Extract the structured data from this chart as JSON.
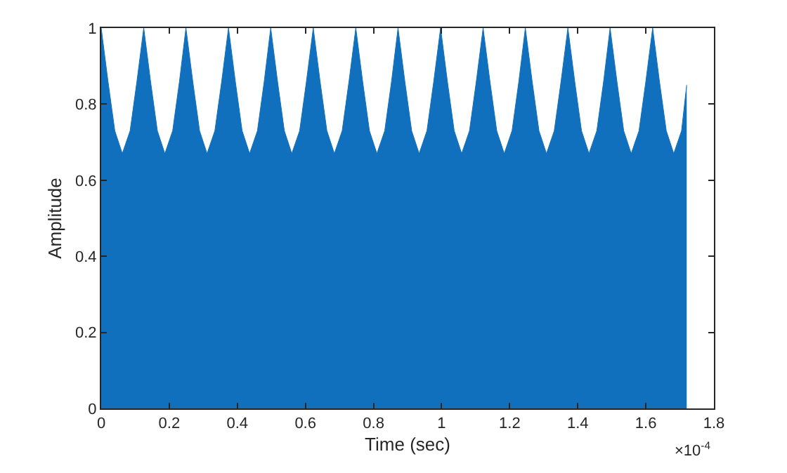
{
  "chart_data": {
    "type": "area",
    "xlabel": "Time (sec)",
    "ylabel": "Amplitude",
    "annotations": [
      "×10$^{-4}$"
    ],
    "xlim": [
      0,
      1.8
    ],
    "xticks": [
      0,
      0.2,
      0.4,
      0.6,
      0.8,
      1,
      1.2,
      1.4,
      1.6,
      1.8
    ],
    "ylim": [
      0,
      1
    ],
    "yticks": [
      0,
      0.2,
      0.4,
      0.6,
      0.8,
      1
    ],
    "series": [
      {
        "color": "#1170be",
        "x": [
          0,
          0.02,
          0.04,
          0.062,
          0.085,
          0.105,
          0.125,
          0.145,
          0.165,
          0.187,
          0.21,
          0.23,
          0.249,
          0.269,
          0.289,
          0.311,
          0.334,
          0.354,
          0.374,
          0.394,
          0.414,
          0.436,
          0.459,
          0.479,
          0.498,
          0.518,
          0.538,
          0.56,
          0.583,
          0.603,
          0.623,
          0.643,
          0.663,
          0.685,
          0.708,
          0.728,
          0.748,
          0.768,
          0.788,
          0.81,
          0.833,
          0.853,
          0.872,
          0.892,
          0.912,
          0.934,
          0.957,
          0.977,
          0.997,
          1.017,
          1.037,
          1.059,
          1.082,
          1.102,
          1.122,
          1.142,
          1.162,
          1.184,
          1.207,
          1.227,
          1.246,
          1.266,
          1.286,
          1.308,
          1.331,
          1.351,
          1.371,
          1.391,
          1.411,
          1.433,
          1.456,
          1.476,
          1.495,
          1.515,
          1.535,
          1.557,
          1.58,
          1.6,
          1.62,
          1.64,
          1.66,
          1.682,
          1.705,
          1.72
        ],
        "values": [
          1,
          0.86,
          0.73,
          0.67,
          0.73,
          0.86,
          1,
          0.86,
          0.73,
          0.67,
          0.73,
          0.86,
          1,
          0.86,
          0.73,
          0.67,
          0.73,
          0.86,
          1,
          0.86,
          0.73,
          0.67,
          0.73,
          0.86,
          1,
          0.86,
          0.73,
          0.67,
          0.73,
          0.86,
          1,
          0.86,
          0.73,
          0.67,
          0.73,
          0.86,
          1,
          0.86,
          0.73,
          0.67,
          0.73,
          0.86,
          1,
          0.86,
          0.73,
          0.67,
          0.73,
          0.86,
          1,
          0.86,
          0.73,
          0.67,
          0.73,
          0.86,
          1,
          0.86,
          0.73,
          0.67,
          0.73,
          0.86,
          1,
          0.86,
          0.73,
          0.67,
          0.73,
          0.86,
          1,
          0.86,
          0.73,
          0.67,
          0.73,
          0.86,
          1,
          0.86,
          0.73,
          0.67,
          0.73,
          0.86,
          1,
          0.86,
          0.73,
          0.67,
          0.73,
          0.85
        ]
      }
    ]
  }
}
